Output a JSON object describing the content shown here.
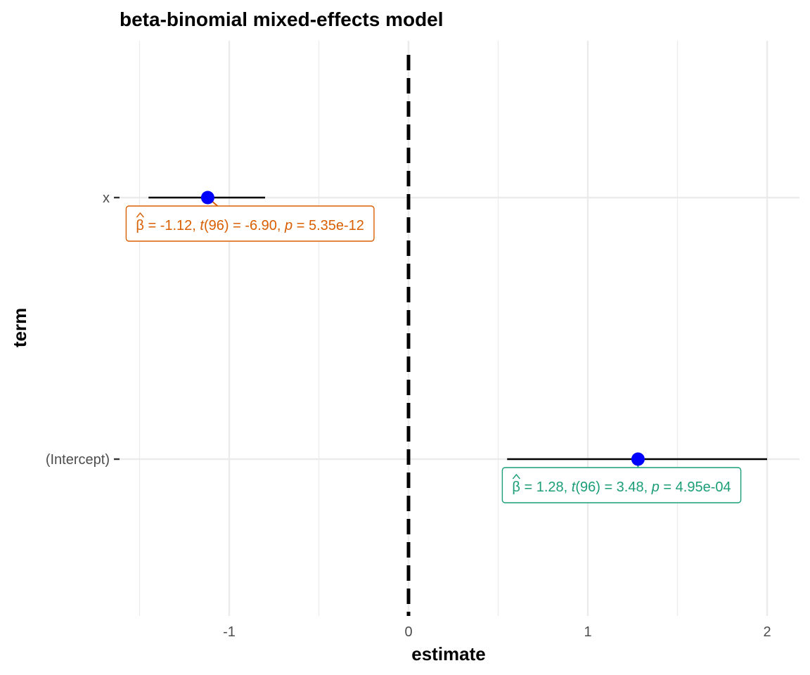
{
  "chart_data": {
    "type": "scatter",
    "title": "beta-binomial mixed-effects model",
    "xlabel": "estimate",
    "ylabel": "term",
    "xlim": [
      -1.5,
      2.2
    ],
    "x_ticks": [
      -1,
      0,
      1,
      2
    ],
    "x_tick_labels": [
      "-1",
      "0",
      "1",
      "2"
    ],
    "grid": true,
    "reference_line": {
      "x": 0,
      "style": "dashed"
    },
    "point_color": "#0000FF",
    "terms": [
      {
        "name": "(Intercept)",
        "estimate": 1.28,
        "conf_low": 0.55,
        "conf_high": 2.0,
        "color": "#1B9E77",
        "annotation": {
          "beta_label": "β",
          "beta_value": " = 1.28,",
          "stat_label": "t",
          "stat_df": "(96)",
          "stat_value": " = 3.48,",
          "p_label": "p",
          "p_value": " = 4.95e-04"
        }
      },
      {
        "name": "x",
        "estimate": -1.12,
        "conf_low": -1.45,
        "conf_high": -0.8,
        "color": "#D95F02",
        "annotation": {
          "beta_label": "β",
          "beta_value": " = -1.12,",
          "stat_label": "t",
          "stat_df": "(96)",
          "stat_value": " = -6.90,",
          "p_label": "p",
          "p_value": " = 5.35e-12"
        }
      }
    ]
  }
}
